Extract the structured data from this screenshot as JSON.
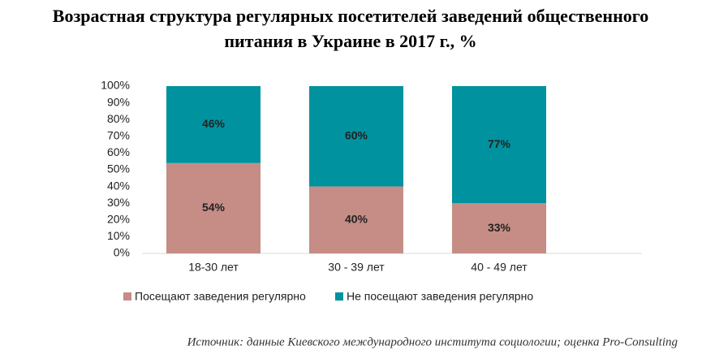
{
  "chart_data": {
    "type": "bar",
    "stacked": "percent",
    "title": [
      "Возрастная структура регулярных посетителей заведений общественного",
      "питания в Украине в 2017 г., %"
    ],
    "categories": [
      "18-30 лет",
      "30 - 39 лет",
      "40 - 49 лет"
    ],
    "series": [
      {
        "name": "Посещают заведения регулярно",
        "color": "#c58d85",
        "values": [
          54,
          40,
          33
        ],
        "value_labels": [
          "54%",
          "40%",
          "33%"
        ]
      },
      {
        "name": "Не посещают заведения регулярно",
        "color": "#00929f",
        "values": [
          46,
          60,
          77
        ],
        "value_labels": [
          "46%",
          "60%",
          "77%"
        ]
      }
    ],
    "ylim": [
      0,
      100
    ],
    "yticks": [
      {
        "value": 0,
        "label": "0%"
      },
      {
        "value": 10,
        "label": "10%"
      },
      {
        "value": 20,
        "label": "20%"
      },
      {
        "value": 30,
        "label": "30%"
      },
      {
        "value": 40,
        "label": "40%"
      },
      {
        "value": 50,
        "label": "50%"
      },
      {
        "value": 60,
        "label": "60%"
      },
      {
        "value": 70,
        "label": "70%"
      },
      {
        "value": 80,
        "label": "80%"
      },
      {
        "value": 90,
        "label": "90%"
      },
      {
        "value": 100,
        "label": "100%"
      }
    ],
    "grid": false,
    "legend": "bottom",
    "source": "Источник: данные Киевского международного института социологии; оценка Pro-Consulting"
  }
}
